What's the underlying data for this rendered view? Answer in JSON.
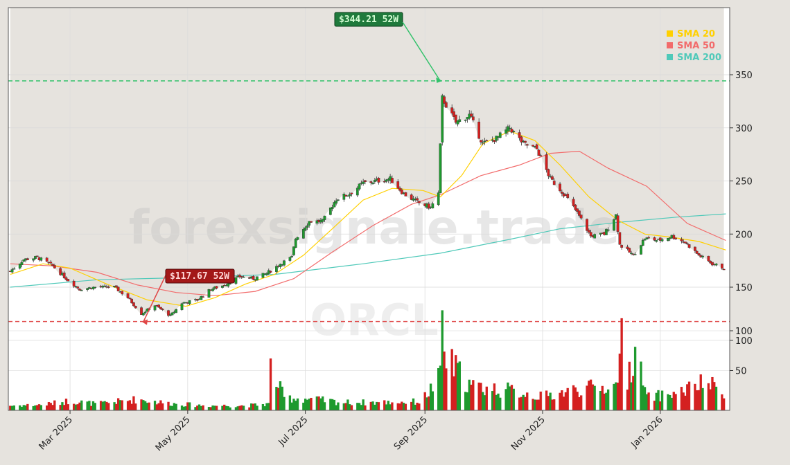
{
  "watermark": {
    "site": "forexsignale.trade",
    "ticker": "ORCL"
  },
  "legend": [
    {
      "label": "SMA 20",
      "color": "#ffd000"
    },
    {
      "label": "SMA 50",
      "color": "#f26b6b"
    },
    {
      "label": "SMA 200",
      "color": "#4fc9b9"
    }
  ],
  "annotations": {
    "high_label": "$344.21 52W",
    "low_label": "$117.67 52W"
  },
  "colors": {
    "up": "#1e9a2e",
    "down": "#d42020",
    "high_line": "#33c26b",
    "low_line": "#e04848",
    "plot_bg": "#ffffff",
    "shade": "#e6e3de"
  },
  "chart_data": [
    {
      "type": "candlestick",
      "title": "",
      "xlabel": "",
      "ylabel": "",
      "ylim": [
        70,
        362
      ],
      "y_ticks": [
        100,
        150,
        200,
        250,
        300,
        350
      ],
      "x_ticks": [
        "Mar 2025",
        "May 2025",
        "Jul 2025",
        "Sep 2025",
        "Nov 2025",
        "Jan 2026"
      ],
      "x_tick_dates": [
        "2025-03-01",
        "2025-05-01",
        "2025-07-01",
        "2025-09-01",
        "2025-11-01",
        "2026-01-01"
      ],
      "x_range": [
        "2025-01-28",
        "2026-02-06"
      ],
      "grid": true,
      "legend_position": "top-right",
      "reference_lines": [
        {
          "label": "$344.21 52W",
          "value": 344.21,
          "date": "2025-09-10"
        },
        {
          "label": "$117.67 52W",
          "value": 117.67,
          "date": "2025-04-07"
        }
      ],
      "price_keypoints": [
        [
          "2025-01-29",
          165
        ],
        [
          "2025-02-05",
          176
        ],
        [
          "2025-02-12",
          178
        ],
        [
          "2025-02-20",
          170
        ],
        [
          "2025-02-27",
          158
        ],
        [
          "2025-03-06",
          148
        ],
        [
          "2025-03-14",
          150
        ],
        [
          "2025-03-24",
          150
        ],
        [
          "2025-03-31",
          140
        ],
        [
          "2025-04-07",
          125
        ],
        [
          "2025-04-14",
          133
        ],
        [
          "2025-04-22",
          123
        ],
        [
          "2025-04-28",
          135
        ],
        [
          "2025-05-06",
          138
        ],
        [
          "2025-05-13",
          148
        ],
        [
          "2025-05-20",
          152
        ],
        [
          "2025-05-28",
          160
        ],
        [
          "2025-06-04",
          158
        ],
        [
          "2025-06-11",
          163
        ],
        [
          "2025-06-18",
          172
        ],
        [
          "2025-06-24",
          178
        ],
        [
          "2025-06-26",
          196
        ],
        [
          "2025-07-03",
          212
        ],
        [
          "2025-07-10",
          212
        ],
        [
          "2025-07-17",
          233
        ],
        [
          "2025-07-24",
          238
        ],
        [
          "2025-07-31",
          248
        ],
        [
          "2025-08-07",
          250
        ],
        [
          "2025-08-14",
          252
        ],
        [
          "2025-08-21",
          238
        ],
        [
          "2025-08-28",
          230
        ],
        [
          "2025-09-04",
          225
        ],
        [
          "2025-09-08",
          238
        ],
        [
          "2025-09-10",
          328
        ],
        [
          "2025-09-17",
          305
        ],
        [
          "2025-09-24",
          312
        ],
        [
          "2025-10-01",
          285
        ],
        [
          "2025-10-08",
          290
        ],
        [
          "2025-10-15",
          300
        ],
        [
          "2025-10-22",
          285
        ],
        [
          "2025-10-29",
          280
        ],
        [
          "2025-11-05",
          252
        ],
        [
          "2025-11-12",
          238
        ],
        [
          "2025-11-19",
          220
        ],
        [
          "2025-11-26",
          198
        ],
        [
          "2025-12-03",
          200
        ],
        [
          "2025-12-09",
          218
        ],
        [
          "2025-12-11",
          190
        ],
        [
          "2025-12-18",
          180
        ],
        [
          "2025-12-24",
          196
        ],
        [
          "2025-12-31",
          194
        ],
        [
          "2026-01-07",
          198
        ],
        [
          "2026-01-14",
          192
        ],
        [
          "2026-01-21",
          180
        ],
        [
          "2026-01-28",
          172
        ],
        [
          "2026-02-03",
          168
        ]
      ],
      "sma20_keypoints": [
        [
          "2025-01-29",
          162
        ],
        [
          "2025-02-15",
          172
        ],
        [
          "2025-03-01",
          168
        ],
        [
          "2025-03-20",
          153
        ],
        [
          "2025-04-10",
          138
        ],
        [
          "2025-04-30",
          132
        ],
        [
          "2025-05-15",
          140
        ],
        [
          "2025-05-31",
          153
        ],
        [
          "2025-06-15",
          162
        ],
        [
          "2025-06-30",
          180
        ],
        [
          "2025-07-15",
          205
        ],
        [
          "2025-07-31",
          232
        ],
        [
          "2025-08-15",
          243
        ],
        [
          "2025-08-31",
          241
        ],
        [
          "2025-09-09",
          235
        ],
        [
          "2025-09-20",
          255
        ],
        [
          "2025-10-01",
          285
        ],
        [
          "2025-10-15",
          297
        ],
        [
          "2025-10-28",
          288
        ],
        [
          "2025-11-10",
          265
        ],
        [
          "2025-11-25",
          235
        ],
        [
          "2025-12-10",
          213
        ],
        [
          "2025-12-24",
          200
        ],
        [
          "2026-01-07",
          197
        ],
        [
          "2026-01-21",
          193
        ],
        [
          "2026-02-04",
          185
        ]
      ],
      "sma50_keypoints": [
        [
          "2025-01-29",
          172
        ],
        [
          "2025-02-20",
          170
        ],
        [
          "2025-03-15",
          164
        ],
        [
          "2025-04-05",
          152
        ],
        [
          "2025-04-25",
          145
        ],
        [
          "2025-05-15",
          142
        ],
        [
          "2025-06-05",
          146
        ],
        [
          "2025-06-25",
          158
        ],
        [
          "2025-07-15",
          183
        ],
        [
          "2025-08-05",
          208
        ],
        [
          "2025-08-25",
          228
        ],
        [
          "2025-09-09",
          237
        ],
        [
          "2025-09-30",
          255
        ],
        [
          "2025-10-20",
          265
        ],
        [
          "2025-11-05",
          276
        ],
        [
          "2025-11-20",
          278
        ],
        [
          "2025-12-05",
          262
        ],
        [
          "2025-12-25",
          245
        ],
        [
          "2026-01-15",
          210
        ],
        [
          "2026-02-04",
          194
        ]
      ],
      "sma200_keypoints": [
        [
          "2025-01-29",
          150
        ],
        [
          "2025-03-15",
          157
        ],
        [
          "2025-04-30",
          159
        ],
        [
          "2025-06-15",
          162
        ],
        [
          "2025-07-31",
          172
        ],
        [
          "2025-09-09",
          182
        ],
        [
          "2025-10-15",
          195
        ],
        [
          "2025-11-10",
          205
        ],
        [
          "2025-12-10",
          211
        ],
        [
          "2026-01-10",
          216
        ],
        [
          "2026-02-04",
          219
        ]
      ],
      "volume_axis": {
        "range": [
          0,
          135
        ],
        "ticks": [
          50,
          100
        ]
      },
      "volume_keypoints": [
        [
          "2025-01-29",
          6
        ],
        [
          "2025-02-15",
          7
        ],
        [
          "2025-03-01",
          12
        ],
        [
          "2025-03-15",
          8
        ],
        [
          "2025-04-05",
          14
        ],
        [
          "2025-04-20",
          9
        ],
        [
          "2025-05-10",
          6
        ],
        [
          "2025-06-01",
          6
        ],
        [
          "2025-06-12",
          8
        ],
        [
          "2025-06-13",
          54
        ],
        [
          "2025-06-20",
          16
        ],
        [
          "2025-07-05",
          14
        ],
        [
          "2025-07-20",
          10
        ],
        [
          "2025-08-10",
          10
        ],
        [
          "2025-08-30",
          11
        ],
        [
          "2025-09-09",
          42
        ],
        [
          "2025-09-10",
          130
        ],
        [
          "2025-09-11",
          68
        ],
        [
          "2025-09-25",
          30
        ],
        [
          "2025-10-15",
          25
        ],
        [
          "2025-11-01",
          17
        ],
        [
          "2025-11-20",
          27
        ],
        [
          "2025-12-09",
          30
        ],
        [
          "2025-12-10",
          48
        ],
        [
          "2025-12-11",
          99
        ],
        [
          "2025-12-15",
          42
        ],
        [
          "2025-12-19",
          75
        ],
        [
          "2025-12-25",
          16
        ],
        [
          "2026-01-10",
          22
        ],
        [
          "2026-01-25",
          35
        ],
        [
          "2026-02-04",
          20
        ]
      ]
    }
  ]
}
